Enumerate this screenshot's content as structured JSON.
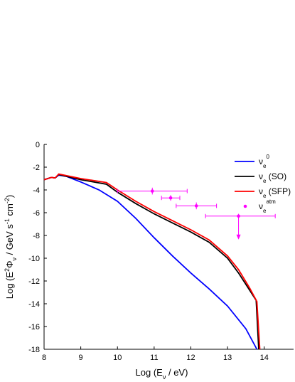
{
  "chart_data": {
    "type": "line",
    "xlabel": [
      "Log (E",
      "ν",
      " / eV)"
    ],
    "ylabel": [
      "Log (E",
      "2",
      "Φ",
      "ν",
      " / GeV s",
      "-1",
      " cm",
      "-2",
      ")"
    ],
    "xlim": [
      8,
      14.8
    ],
    "ylim": [
      -18,
      0
    ],
    "xticks": [
      8,
      9,
      10,
      11,
      12,
      13,
      14
    ],
    "yticks": [
      0,
      -2,
      -4,
      -6,
      -8,
      -10,
      -12,
      -14,
      -16,
      -18
    ],
    "legend": "upper right",
    "series": [
      {
        "name": "ν",
        "name_sub": "e",
        "name_sup": "0",
        "color": "#0000ff",
        "x": [
          8,
          8.1,
          8.2,
          8.3,
          8.4,
          8.6,
          9,
          9.5,
          10,
          10.5,
          11,
          11.5,
          12,
          12.5,
          13,
          13.5,
          13.8
        ],
        "values": [
          -3.1,
          -3.0,
          -2.9,
          -2.95,
          -2.7,
          -2.8,
          -3.3,
          -4.0,
          -5.0,
          -6.5,
          -8.2,
          -9.8,
          -11.3,
          -12.7,
          -14.2,
          -16.2,
          -18
        ]
      },
      {
        "name": "ν",
        "name_sub": "e",
        "name_tail": " (SO)",
        "color": "#000000",
        "x": [
          8,
          8.1,
          8.2,
          8.3,
          8.4,
          9,
          9.7,
          10,
          10.5,
          11,
          11.5,
          12,
          12.5,
          13,
          13.3,
          13.6,
          13.78,
          13.85
        ],
        "values": [
          -3.1,
          -3.0,
          -2.9,
          -2.95,
          -2.65,
          -3.1,
          -3.5,
          -4.2,
          -5.2,
          -6.1,
          -6.9,
          -7.7,
          -8.6,
          -10.0,
          -11.3,
          -12.8,
          -13.7,
          -18
        ]
      },
      {
        "name": "ν",
        "name_sub": "e",
        "name_tail": " (SFP)",
        "color": "#ff0000",
        "x": [
          8,
          8.1,
          8.2,
          8.3,
          8.4,
          9,
          9.7,
          10,
          10.5,
          11,
          11.5,
          12,
          12.5,
          13,
          13.3,
          13.6,
          13.8,
          13.88
        ],
        "values": [
          -3.1,
          -3.0,
          -2.9,
          -2.95,
          -2.6,
          -3.0,
          -3.35,
          -4.0,
          -5.0,
          -5.9,
          -6.7,
          -7.5,
          -8.4,
          -9.8,
          -11.0,
          -12.6,
          -13.8,
          -18
        ]
      }
    ],
    "points": {
      "name": "ν",
      "name_sub": "e",
      "name_sup": "atm",
      "color": "#ff00ff",
      "x": [
        10.95,
        11.45,
        12.15,
        13.3
      ],
      "values": [
        -4.1,
        -4.7,
        -5.4,
        -6.3
      ],
      "xerr_low": [
        10.0,
        11.2,
        11.6,
        12.4
      ],
      "xerr_high": [
        11.9,
        11.7,
        12.7,
        14.3
      ],
      "yerr": [
        0.3,
        0.25,
        0.3,
        0.2
      ],
      "upper_limit": [
        false,
        false,
        false,
        true
      ]
    }
  }
}
